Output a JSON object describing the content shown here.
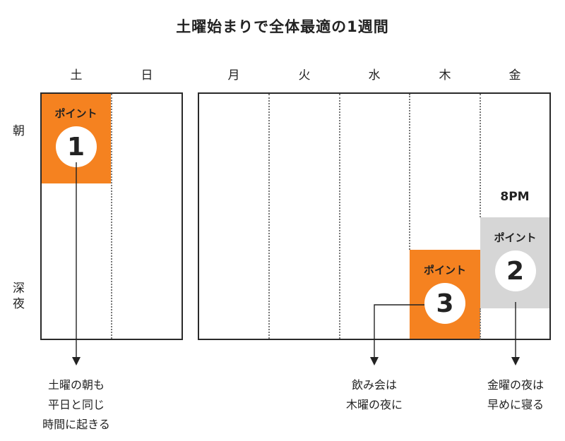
{
  "title": "土曜始まりで全体最適の1週間",
  "days": [
    "土",
    "日",
    "月",
    "火",
    "水",
    "木",
    "金"
  ],
  "time_labels": {
    "morning": "朝",
    "late_night_1": "深",
    "late_night_2": "夜"
  },
  "time_marker": "8PM",
  "points": [
    {
      "label": "ポイント",
      "number": "1",
      "color": "#f58220"
    },
    {
      "label": "ポイント",
      "number": "2",
      "color": "#d6d6d6"
    },
    {
      "label": "ポイント",
      "number": "3",
      "color": "#f58220"
    }
  ],
  "notes": {
    "point1": [
      "土曜の朝も",
      "平日と同じ",
      "時間に起きる"
    ],
    "point3": [
      "飲み会は",
      "木曜の夜に"
    ],
    "point2": [
      "金曜の夜は",
      "早めに寝る"
    ]
  }
}
